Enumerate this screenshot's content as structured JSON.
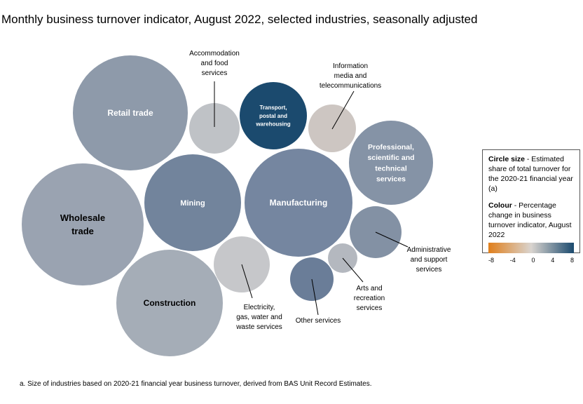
{
  "title": "Monthly business turnover indicator, August 2022, selected industries, seasonally adjusted",
  "legend": {
    "size_bold": "Circle size",
    "size_text": " - Estimated share of total turnover for the 2020-21 financial year (a)",
    "colour_bold": "Colour",
    "colour_text": " - Percentage change in business turnover indicator, August 2022",
    "scale_colors": [
      "#e07f1c",
      "#d9d4cf",
      "#1b4a6e"
    ],
    "ticks": [
      "-8",
      "-4",
      "0",
      "4",
      "8"
    ]
  },
  "footnote": "a. Size of industries based on 2020-21 financial year business turnover, derived from BAS Unit Record Estimates.",
  "industries": [
    {
      "name": [
        "Retail trade"
      ],
      "color": "#8e9aaa",
      "label": "inside"
    },
    {
      "name": [
        "Accommodation",
        "and food",
        "services"
      ],
      "color": "#bfc2c6",
      "label": "outside"
    },
    {
      "name": [
        "Transport,",
        "postal and",
        "warehousing"
      ],
      "color": "#1b4a6e",
      "label": "inside"
    },
    {
      "name": [
        "Information",
        "media and",
        "telecommunications"
      ],
      "color": "#cdc6c2",
      "label": "outside"
    },
    {
      "name": [
        "Professional,",
        "scientific and",
        "technical",
        "services"
      ],
      "color": "#8593a6",
      "label": "inside"
    },
    {
      "name": [
        "Wholesale",
        "trade"
      ],
      "color": "#9aa3b1",
      "label": "inside"
    },
    {
      "name": [
        "Mining"
      ],
      "color": "#72849c",
      "label": "inside"
    },
    {
      "name": [
        "Manufacturing"
      ],
      "color": "#7586a0",
      "label": "inside"
    },
    {
      "name": [
        "Administrative",
        "and support",
        "services"
      ],
      "color": "#8391a4",
      "label": "outside"
    },
    {
      "name": [
        "Electricity,",
        "gas, water and",
        "waste services"
      ],
      "color": "#c6c7ca",
      "label": "outside"
    },
    {
      "name": [
        "Arts and",
        "recreation",
        "services"
      ],
      "color": "#b4b8bf",
      "label": "outside"
    },
    {
      "name": [
        "Other services"
      ],
      "color": "#6a7d98",
      "label": "outside"
    },
    {
      "name": [
        "Construction"
      ],
      "color": "#a5adb7",
      "label": "inside"
    }
  ]
}
